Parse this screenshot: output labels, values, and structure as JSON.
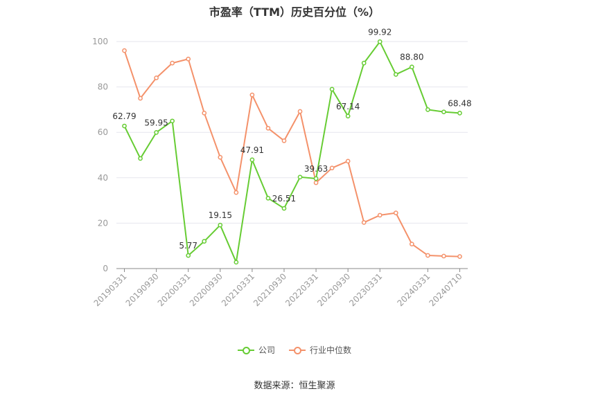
{
  "title": "市盈率（TTM）历史百分位（%）",
  "source": "数据来源：恒生聚源",
  "colors": {
    "company": "#66cc33",
    "industry": "#f4916a",
    "axis": "#999999",
    "grid": "#e6e6ee"
  },
  "chart_data": {
    "type": "line",
    "title": "市盈率（TTM）历史百分位（%）",
    "ylim": [
      0,
      100
    ],
    "yticks": [
      0,
      20,
      40,
      60,
      80,
      100
    ],
    "grid": true,
    "legend_position": "bottom",
    "x": [
      "20190331",
      "20190630",
      "20190930",
      "20191231",
      "20200331",
      "20200630",
      "20200930",
      "20201231",
      "20210331",
      "20210630",
      "20210930",
      "20211231",
      "20220331",
      "20220630",
      "20220930",
      "20221231",
      "20230331",
      "20230630",
      "20231231",
      "20240331",
      "20240630",
      "20240710"
    ],
    "xtick_labels": [
      "20190331",
      "20190930",
      "20200331",
      "20200930",
      "20210331",
      "20210930",
      "20220331",
      "20220930",
      "20230331",
      "20240331",
      "20240710"
    ],
    "series": [
      {
        "name": "公司",
        "values": [
          62.79,
          48.5,
          59.95,
          65.0,
          5.77,
          12.0,
          19.15,
          2.8,
          47.91,
          31.0,
          26.51,
          40.3,
          39.63,
          79.0,
          67.14,
          90.5,
          99.92,
          85.5,
          88.8,
          70.0,
          69.0,
          68.48
        ],
        "labels": [
          {
            "index": 0,
            "text": "62.79"
          },
          {
            "index": 2,
            "text": "59.95"
          },
          {
            "index": 4,
            "text": "5.77"
          },
          {
            "index": 6,
            "text": "19.15"
          },
          {
            "index": 8,
            "text": "47.91"
          },
          {
            "index": 10,
            "text": "26.51"
          },
          {
            "index": 12,
            "text": "39.63"
          },
          {
            "index": 14,
            "text": "67.14"
          },
          {
            "index": 16,
            "text": "99.92"
          },
          {
            "index": 18,
            "text": "88.80"
          },
          {
            "index": 21,
            "text": "68.48"
          }
        ]
      },
      {
        "name": "行业中位数",
        "values": [
          96.0,
          75.0,
          84.0,
          90.5,
          92.3,
          68.5,
          49.0,
          33.5,
          76.5,
          61.8,
          56.3,
          69.2,
          37.8,
          44.3,
          47.3,
          20.3,
          23.5,
          24.5,
          10.8,
          5.8,
          5.5,
          5.3
        ]
      }
    ]
  }
}
